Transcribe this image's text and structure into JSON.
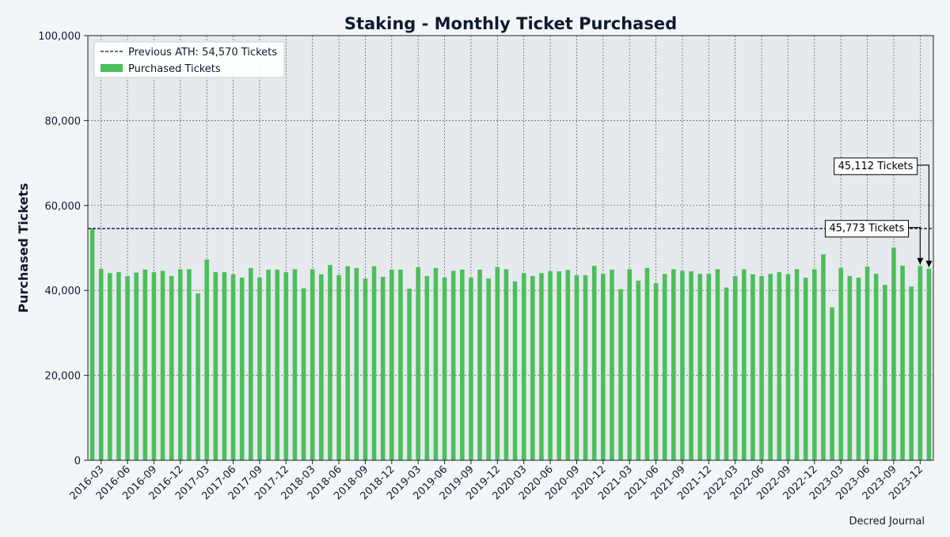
{
  "chart_data": {
    "type": "bar",
    "title": "Staking - Monthly Ticket Purchased",
    "ylabel": "Purchased Tickets",
    "xlabel": "",
    "ylim": [
      0,
      100000
    ],
    "yticks": [
      "0",
      "20,000",
      "40,000",
      "60,000",
      "80,000",
      "100,000"
    ],
    "ytick_values": [
      0,
      20000,
      40000,
      60000,
      80000,
      100000
    ],
    "grid": true,
    "legend_position": "top-left",
    "bar_color": "#4bbf5a",
    "reference_color": "#0f1a2e",
    "plot_background": "#e6eaee",
    "legend": {
      "reference_label": "Previous ATH: 54,570 Tickets",
      "bar_label": "Purchased Tickets"
    },
    "reference_line": {
      "value": 54570
    },
    "categories": [
      "2016-02",
      "2016-03",
      "2016-04",
      "2016-05",
      "2016-06",
      "2016-07",
      "2016-08",
      "2016-09",
      "2016-10",
      "2016-11",
      "2016-12",
      "2017-01",
      "2017-02",
      "2017-03",
      "2017-04",
      "2017-05",
      "2017-06",
      "2017-07",
      "2017-08",
      "2017-09",
      "2017-10",
      "2017-11",
      "2017-12",
      "2018-01",
      "2018-02",
      "2018-03",
      "2018-04",
      "2018-05",
      "2018-06",
      "2018-07",
      "2018-08",
      "2018-09",
      "2018-10",
      "2018-11",
      "2018-12",
      "2019-01",
      "2019-02",
      "2019-03",
      "2019-04",
      "2019-05",
      "2019-06",
      "2019-07",
      "2019-08",
      "2019-09",
      "2019-10",
      "2019-11",
      "2019-12",
      "2020-01",
      "2020-02",
      "2020-03",
      "2020-04",
      "2020-05",
      "2020-06",
      "2020-07",
      "2020-08",
      "2020-09",
      "2020-10",
      "2020-11",
      "2020-12",
      "2021-01",
      "2021-02",
      "2021-03",
      "2021-04",
      "2021-05",
      "2021-06",
      "2021-07",
      "2021-08",
      "2021-09",
      "2021-10",
      "2021-11",
      "2021-12",
      "2022-01",
      "2022-02",
      "2022-03",
      "2022-04",
      "2022-05",
      "2022-06",
      "2022-07",
      "2022-08",
      "2022-09",
      "2022-10",
      "2022-11",
      "2022-12",
      "2023-01",
      "2023-02",
      "2023-03",
      "2023-04",
      "2023-05",
      "2023-06",
      "2023-07",
      "2023-08",
      "2023-09",
      "2023-10",
      "2023-11",
      "2023-12",
      "2024-01"
    ],
    "xtick_labels": [
      "2016-03",
      "2016-06",
      "2016-09",
      "2016-12",
      "2017-03",
      "2017-06",
      "2017-09",
      "2017-12",
      "2018-03",
      "2018-06",
      "2018-09",
      "2018-12",
      "2019-03",
      "2019-06",
      "2019-09",
      "2019-12",
      "2020-03",
      "2020-06",
      "2020-09",
      "2020-12",
      "2021-03",
      "2021-06",
      "2021-09",
      "2021-12",
      "2022-03",
      "2022-06",
      "2022-09",
      "2022-12",
      "2023-03",
      "2023-06",
      "2023-09",
      "2023-12"
    ],
    "values": [
      54570,
      45100,
      44100,
      44300,
      43400,
      44200,
      44900,
      44300,
      44600,
      43400,
      45000,
      45000,
      39300,
      47300,
      44300,
      44300,
      43800,
      43000,
      45300,
      43000,
      44900,
      44900,
      44300,
      45000,
      40500,
      45000,
      43800,
      46000,
      43600,
      45700,
      45300,
      42800,
      45700,
      43200,
      44900,
      44900,
      40400,
      45500,
      43400,
      45300,
      43000,
      44600,
      44900,
      43000,
      44900,
      42800,
      45500,
      45000,
      42100,
      44100,
      43400,
      44100,
      44500,
      44500,
      44800,
      43600,
      43600,
      45800,
      43900,
      44900,
      40300,
      45000,
      42300,
      45300,
      41700,
      43900,
      45000,
      44600,
      44500,
      43900,
      43900,
      45000,
      40700,
      43400,
      45000,
      43800,
      43400,
      43900,
      44300,
      43800,
      45000,
      43000,
      45000,
      48500,
      36000,
      45300,
      43400,
      43000,
      45600,
      43900,
      41300,
      50100,
      45800,
      40900,
      45773,
      45112
    ],
    "annotations": [
      {
        "text": "45,112 Tickets",
        "target_category": "2024-01",
        "target_value": 45112,
        "label_value": 69500
      },
      {
        "text": "45,773 Tickets",
        "target_category": "2023-12",
        "target_value": 45773,
        "label_value": 54800
      }
    ]
  },
  "source": "Decred Journal"
}
